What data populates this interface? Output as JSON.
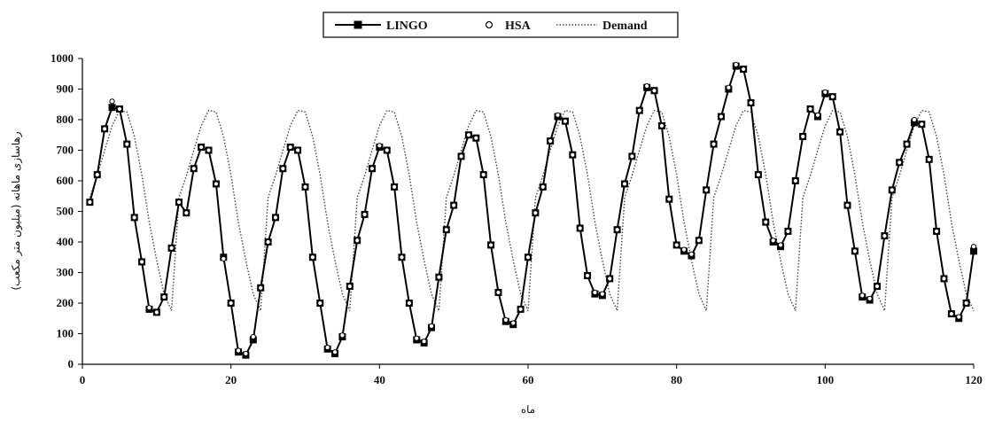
{
  "chart_data": {
    "type": "line",
    "xlabel": "ماه",
    "ylabel": "رهاسازی ماهانه (میلیون متر مکعب)",
    "xlim": [
      0,
      120
    ],
    "ylim": [
      0,
      1000
    ],
    "x_ticks": [
      "0",
      "20",
      "40",
      "60",
      "80",
      "100",
      "120"
    ],
    "y_ticks": [
      "0",
      "100",
      "200",
      "300",
      "400",
      "500",
      "600",
      "700",
      "800",
      "900",
      "1000"
    ],
    "grid": false,
    "legend_position": "top-center",
    "colors": {
      "lingo": "#000000",
      "hsa": "#000000",
      "demand": "#444444"
    },
    "x": [
      1,
      2,
      3,
      4,
      5,
      6,
      7,
      8,
      9,
      10,
      11,
      12,
      13,
      14,
      15,
      16,
      17,
      18,
      19,
      20,
      21,
      22,
      23,
      24,
      25,
      26,
      27,
      28,
      29,
      30,
      31,
      32,
      33,
      34,
      35,
      36,
      37,
      38,
      39,
      40,
      41,
      42,
      43,
      44,
      45,
      46,
      47,
      48,
      49,
      50,
      51,
      52,
      53,
      54,
      55,
      56,
      57,
      58,
      59,
      60,
      61,
      62,
      63,
      64,
      65,
      66,
      67,
      68,
      69,
      70,
      71,
      72,
      73,
      74,
      75,
      76,
      77,
      78,
      79,
      80,
      81,
      82,
      83,
      84,
      85,
      86,
      87,
      88,
      89,
      90,
      91,
      92,
      93,
      94,
      95,
      96,
      97,
      98,
      99,
      100,
      101,
      102,
      103,
      104,
      105,
      106,
      107,
      108,
      109,
      110,
      111,
      112,
      113,
      114,
      115,
      116,
      117,
      118,
      119,
      120
    ],
    "series": [
      {
        "name": "LINGO",
        "style": "line-square",
        "values": [
          530,
          620,
          770,
          840,
          835,
          720,
          480,
          335,
          180,
          170,
          220,
          380,
          530,
          495,
          640,
          710,
          700,
          590,
          350,
          200,
          40,
          30,
          80,
          250,
          400,
          480,
          640,
          710,
          700,
          580,
          350,
          200,
          50,
          35,
          90,
          255,
          405,
          490,
          640,
          710,
          700,
          580,
          350,
          200,
          80,
          70,
          120,
          285,
          440,
          520,
          680,
          750,
          740,
          620,
          390,
          235,
          140,
          130,
          180,
          350,
          495,
          580,
          730,
          810,
          795,
          685,
          445,
          290,
          230,
          225,
          280,
          440,
          590,
          680,
          830,
          905,
          895,
          780,
          540,
          390,
          370,
          355,
          405,
          570,
          720,
          810,
          900,
          975,
          965,
          855,
          620,
          465,
          400,
          385,
          435,
          600,
          745,
          835,
          810,
          885,
          875,
          760,
          520,
          370,
          220,
          210,
          255,
          420,
          570,
          660,
          720,
          790,
          785,
          670,
          435,
          280,
          165,
          150,
          200,
          370
        ]
      },
      {
        "name": "HSA",
        "style": "marker-circle",
        "values": [
          530,
          620,
          770,
          860,
          835,
          720,
          480,
          335,
          185,
          170,
          220,
          380,
          530,
          495,
          640,
          710,
          700,
          590,
          345,
          200,
          45,
          35,
          90,
          250,
          400,
          480,
          640,
          710,
          700,
          580,
          350,
          200,
          55,
          40,
          95,
          255,
          405,
          490,
          640,
          715,
          700,
          580,
          350,
          200,
          85,
          75,
          125,
          285,
          440,
          520,
          680,
          750,
          740,
          620,
          390,
          235,
          145,
          135,
          180,
          350,
          495,
          580,
          730,
          815,
          795,
          685,
          445,
          290,
          235,
          230,
          280,
          440,
          590,
          680,
          830,
          910,
          895,
          780,
          540,
          390,
          375,
          360,
          405,
          570,
          720,
          810,
          905,
          980,
          965,
          855,
          620,
          465,
          405,
          390,
          435,
          600,
          745,
          835,
          815,
          890,
          875,
          760,
          520,
          370,
          225,
          215,
          255,
          420,
          570,
          660,
          720,
          800,
          785,
          670,
          435,
          280,
          165,
          155,
          200,
          385
        ]
      },
      {
        "name": "Demand",
        "style": "dotted",
        "values": [
          545,
          617,
          700,
          780,
          830,
          825,
          745,
          620,
          465,
          340,
          230,
          175,
          545,
          617,
          700,
          780,
          830,
          825,
          745,
          620,
          465,
          340,
          230,
          175,
          545,
          617,
          700,
          780,
          830,
          825,
          745,
          620,
          465,
          340,
          230,
          175,
          545,
          617,
          700,
          780,
          830,
          825,
          745,
          620,
          465,
          340,
          230,
          175,
          545,
          617,
          700,
          780,
          830,
          825,
          745,
          620,
          465,
          340,
          230,
          175,
          545,
          617,
          700,
          780,
          830,
          825,
          745,
          620,
          465,
          340,
          230,
          175,
          545,
          617,
          700,
          780,
          830,
          825,
          745,
          620,
          465,
          340,
          230,
          175,
          545,
          617,
          700,
          780,
          830,
          825,
          745,
          620,
          465,
          340,
          230,
          175,
          545,
          617,
          700,
          780,
          830,
          825,
          745,
          620,
          465,
          340,
          230,
          175,
          545,
          617,
          700,
          780,
          830,
          825,
          745,
          620,
          465,
          340,
          230,
          175
        ]
      }
    ]
  }
}
